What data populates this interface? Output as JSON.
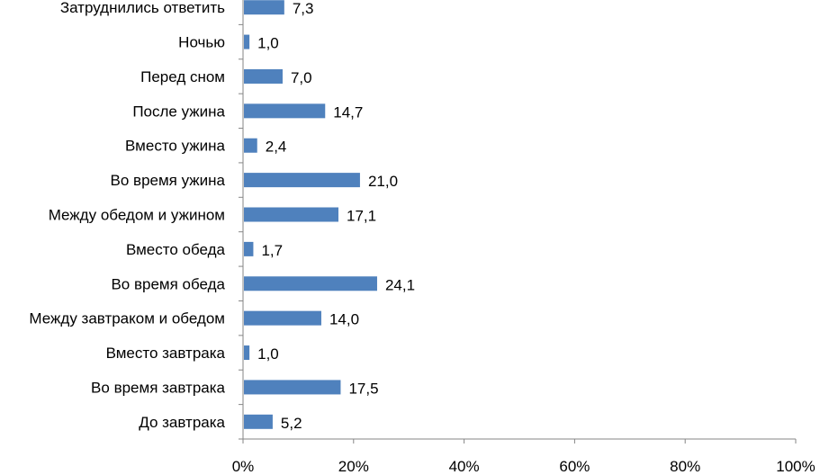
{
  "chart_data": {
    "type": "bar",
    "orientation": "horizontal",
    "categories": [
      "Затруднились ответить",
      "Ночью",
      "Перед сном",
      "После ужина",
      "Вместо ужина",
      "Во время ужина",
      "Между обедом и ужином",
      "Вместо обеда",
      "Во время обеда",
      "Между завтраком и обедом",
      "Вместо завтрака",
      "Во время завтрака",
      "До завтрака"
    ],
    "values": [
      7.3,
      1.0,
      7.0,
      14.7,
      2.4,
      21.0,
      17.1,
      1.7,
      24.1,
      14.0,
      1.0,
      17.5,
      5.2
    ],
    "value_labels": [
      "7,3",
      "1,0",
      "7,0",
      "14,7",
      "2,4",
      "21,0",
      "17,1",
      "1,7",
      "24,1",
      "14,0",
      "1,0",
      "17,5",
      "5,2"
    ],
    "x_ticks": [
      "0%",
      "20%",
      "40%",
      "60%",
      "80%",
      "100%"
    ],
    "xlim": [
      0,
      100
    ],
    "bar_color": "#4F81BD",
    "grid": false,
    "legend": "none",
    "title": "",
    "xlabel": "",
    "ylabel": ""
  }
}
